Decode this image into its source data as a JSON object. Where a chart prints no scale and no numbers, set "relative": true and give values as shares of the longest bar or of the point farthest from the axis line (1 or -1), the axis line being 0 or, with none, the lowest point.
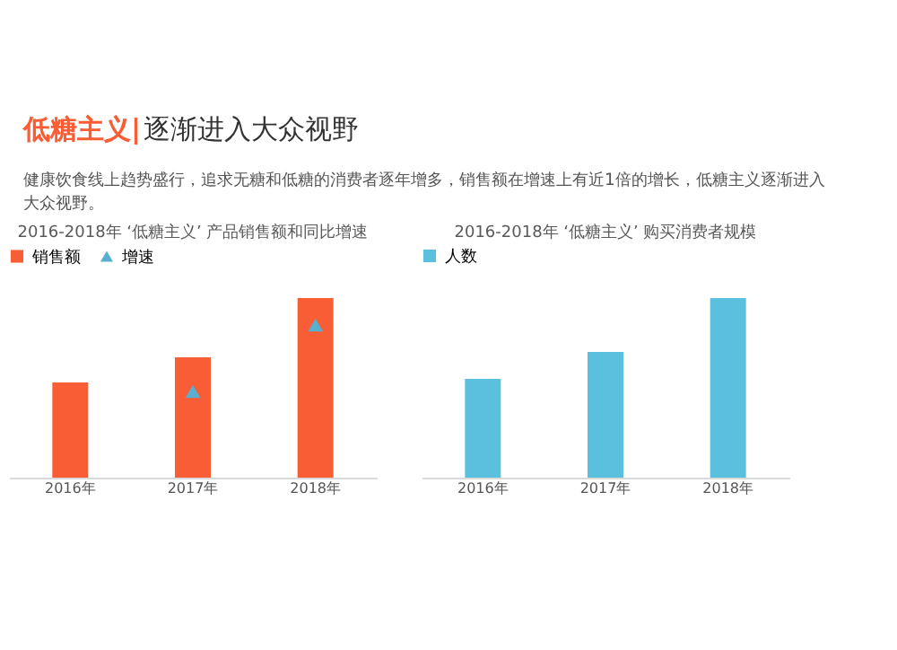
{
  "chart_data": [
    {
      "type": "bar",
      "title": "2016-2018年 ‘低糖主义’ 产品销售额和同比增速",
      "relative": true,
      "legend": "top",
      "categories": [
        "2016年",
        "2017年",
        "2018年"
      ],
      "annotations": [
        "低糖主义|",
        "逐渐进入大众视野",
        "健康饮食线上趋势盛行，追求无糖和低糖的消费者逐年增多，销售额在增速上有近1倍的增长，低糖主义逐渐进入大众视野。"
      ],
      "series": [
        {
          "name": "销售额",
          "type": "bar",
          "color": "#f95d35",
          "values": [
            0.53,
            0.67,
            1
          ]
        },
        {
          "name": "增速",
          "type": "scatter",
          "marker": "triangle",
          "color": "#5aaed0",
          "values": [
            null,
            0.48,
            0.85
          ]
        }
      ]
    },
    {
      "type": "bar",
      "title": "2016-2018年 ‘低糖主义’ 购买消费者规模",
      "relative": true,
      "legend": "top",
      "categories": [
        "2016年",
        "2017年",
        "2018年"
      ],
      "series": [
        {
          "name": "人数",
          "type": "bar",
          "color": "#5bc0de",
          "values": [
            0.55,
            0.7,
            1
          ]
        }
      ]
    }
  ]
}
